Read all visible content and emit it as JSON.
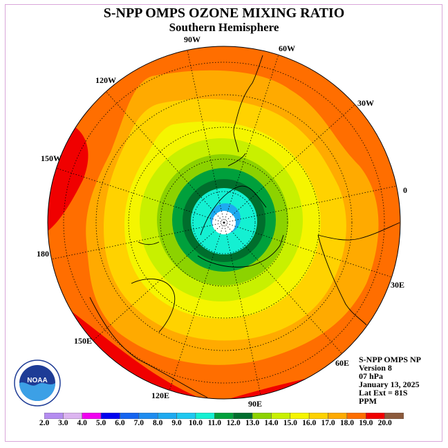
{
  "title": "S-NPP OMPS OZONE MIXING RATIO",
  "subtitle": "Southern Hemisphere",
  "longitude_labels": {
    "lon_90w": "90W",
    "lon_60w": "60W",
    "lon_120w": "120W",
    "lon_30w": "30W",
    "lon_150w": "150W",
    "lon_0": "0",
    "lon_180": "180",
    "lon_30e": "30E",
    "lon_150e": "150E",
    "lon_60e": "60E",
    "lon_120e": "120E",
    "lon_90e": "90E"
  },
  "info": {
    "line1": "S-NPP OMPS NP",
    "line2": "Version 8",
    "line3": "07 hPa",
    "line4": "January 13, 2025",
    "line5": "Lat Ext = 81S",
    "line6": "PPM"
  },
  "colorbar": {
    "ticks": [
      "2.0",
      "3.0",
      "4.0",
      "5.0",
      "6.0",
      "7.0",
      "8.0",
      "9.0",
      "10.0",
      "11.0",
      "12.0",
      "13.0",
      "14.0",
      "15.0",
      "16.0",
      "17.0",
      "18.0",
      "19.0",
      "20.0"
    ],
    "colors": [
      "#b48cf0",
      "#dcb4f0",
      "#f000f0",
      "#0000f0",
      "#1464f0",
      "#1e8cf0",
      "#1eaaf0",
      "#1ec8f0",
      "#14f0d2",
      "#00a03c",
      "#006e2d",
      "#8cd200",
      "#c8f000",
      "#f5f500",
      "#ffd200",
      "#ffaa00",
      "#ff6e00",
      "#f00000",
      "#8c5a3c"
    ]
  },
  "map_colors": {
    "background": "#ff6e00",
    "red": "#f00000",
    "orange": "#ffaa00",
    "gold": "#ffd200",
    "yellow": "#f5f500",
    "yellowgreen": "#c8f000",
    "lightgreen": "#8cd200",
    "green": "#00a03c",
    "darkgreen": "#006e2d",
    "cyan": "#14f0d2",
    "blue": "#1eaaf0",
    "white": "#ffffff"
  },
  "logo_text": "NOAA"
}
